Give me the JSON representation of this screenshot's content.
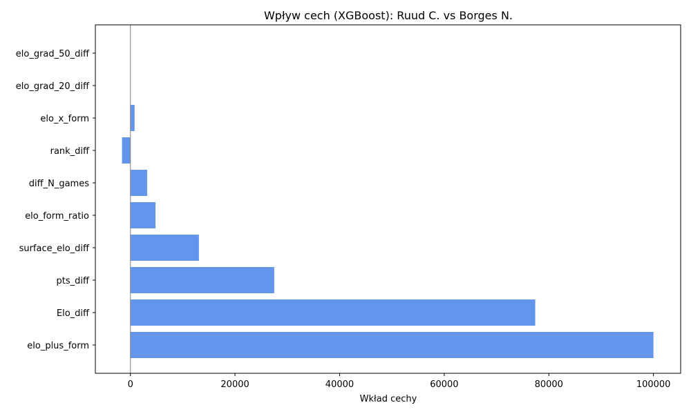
{
  "chart_data": {
    "type": "bar",
    "orientation": "horizontal",
    "title": "Wpływ cech (XGBoost): Ruud C. vs Borges N.",
    "xlabel": "Wkład cechy",
    "ylabel": "",
    "categories": [
      "elo_plus_form",
      "Elo_diff",
      "pts_diff",
      "surface_elo_diff",
      "elo_form_ratio",
      "diff_N_games",
      "rank_diff",
      "elo_x_form",
      "elo_grad_20_diff",
      "elo_grad_50_diff"
    ],
    "values": [
      100000,
      77400,
      27500,
      13100,
      4800,
      3200,
      -1600,
      800,
      0,
      0
    ],
    "xlim": [
      -6700,
      105200
    ],
    "xticks": [
      0,
      20000,
      40000,
      60000,
      80000,
      100000
    ],
    "xtick_labels": [
      "0",
      "20000",
      "40000",
      "60000",
      "80000",
      "100000"
    ],
    "bar_color": "#6495ED",
    "zero_line_color": "#808080",
    "grid": false,
    "legend": "none"
  }
}
